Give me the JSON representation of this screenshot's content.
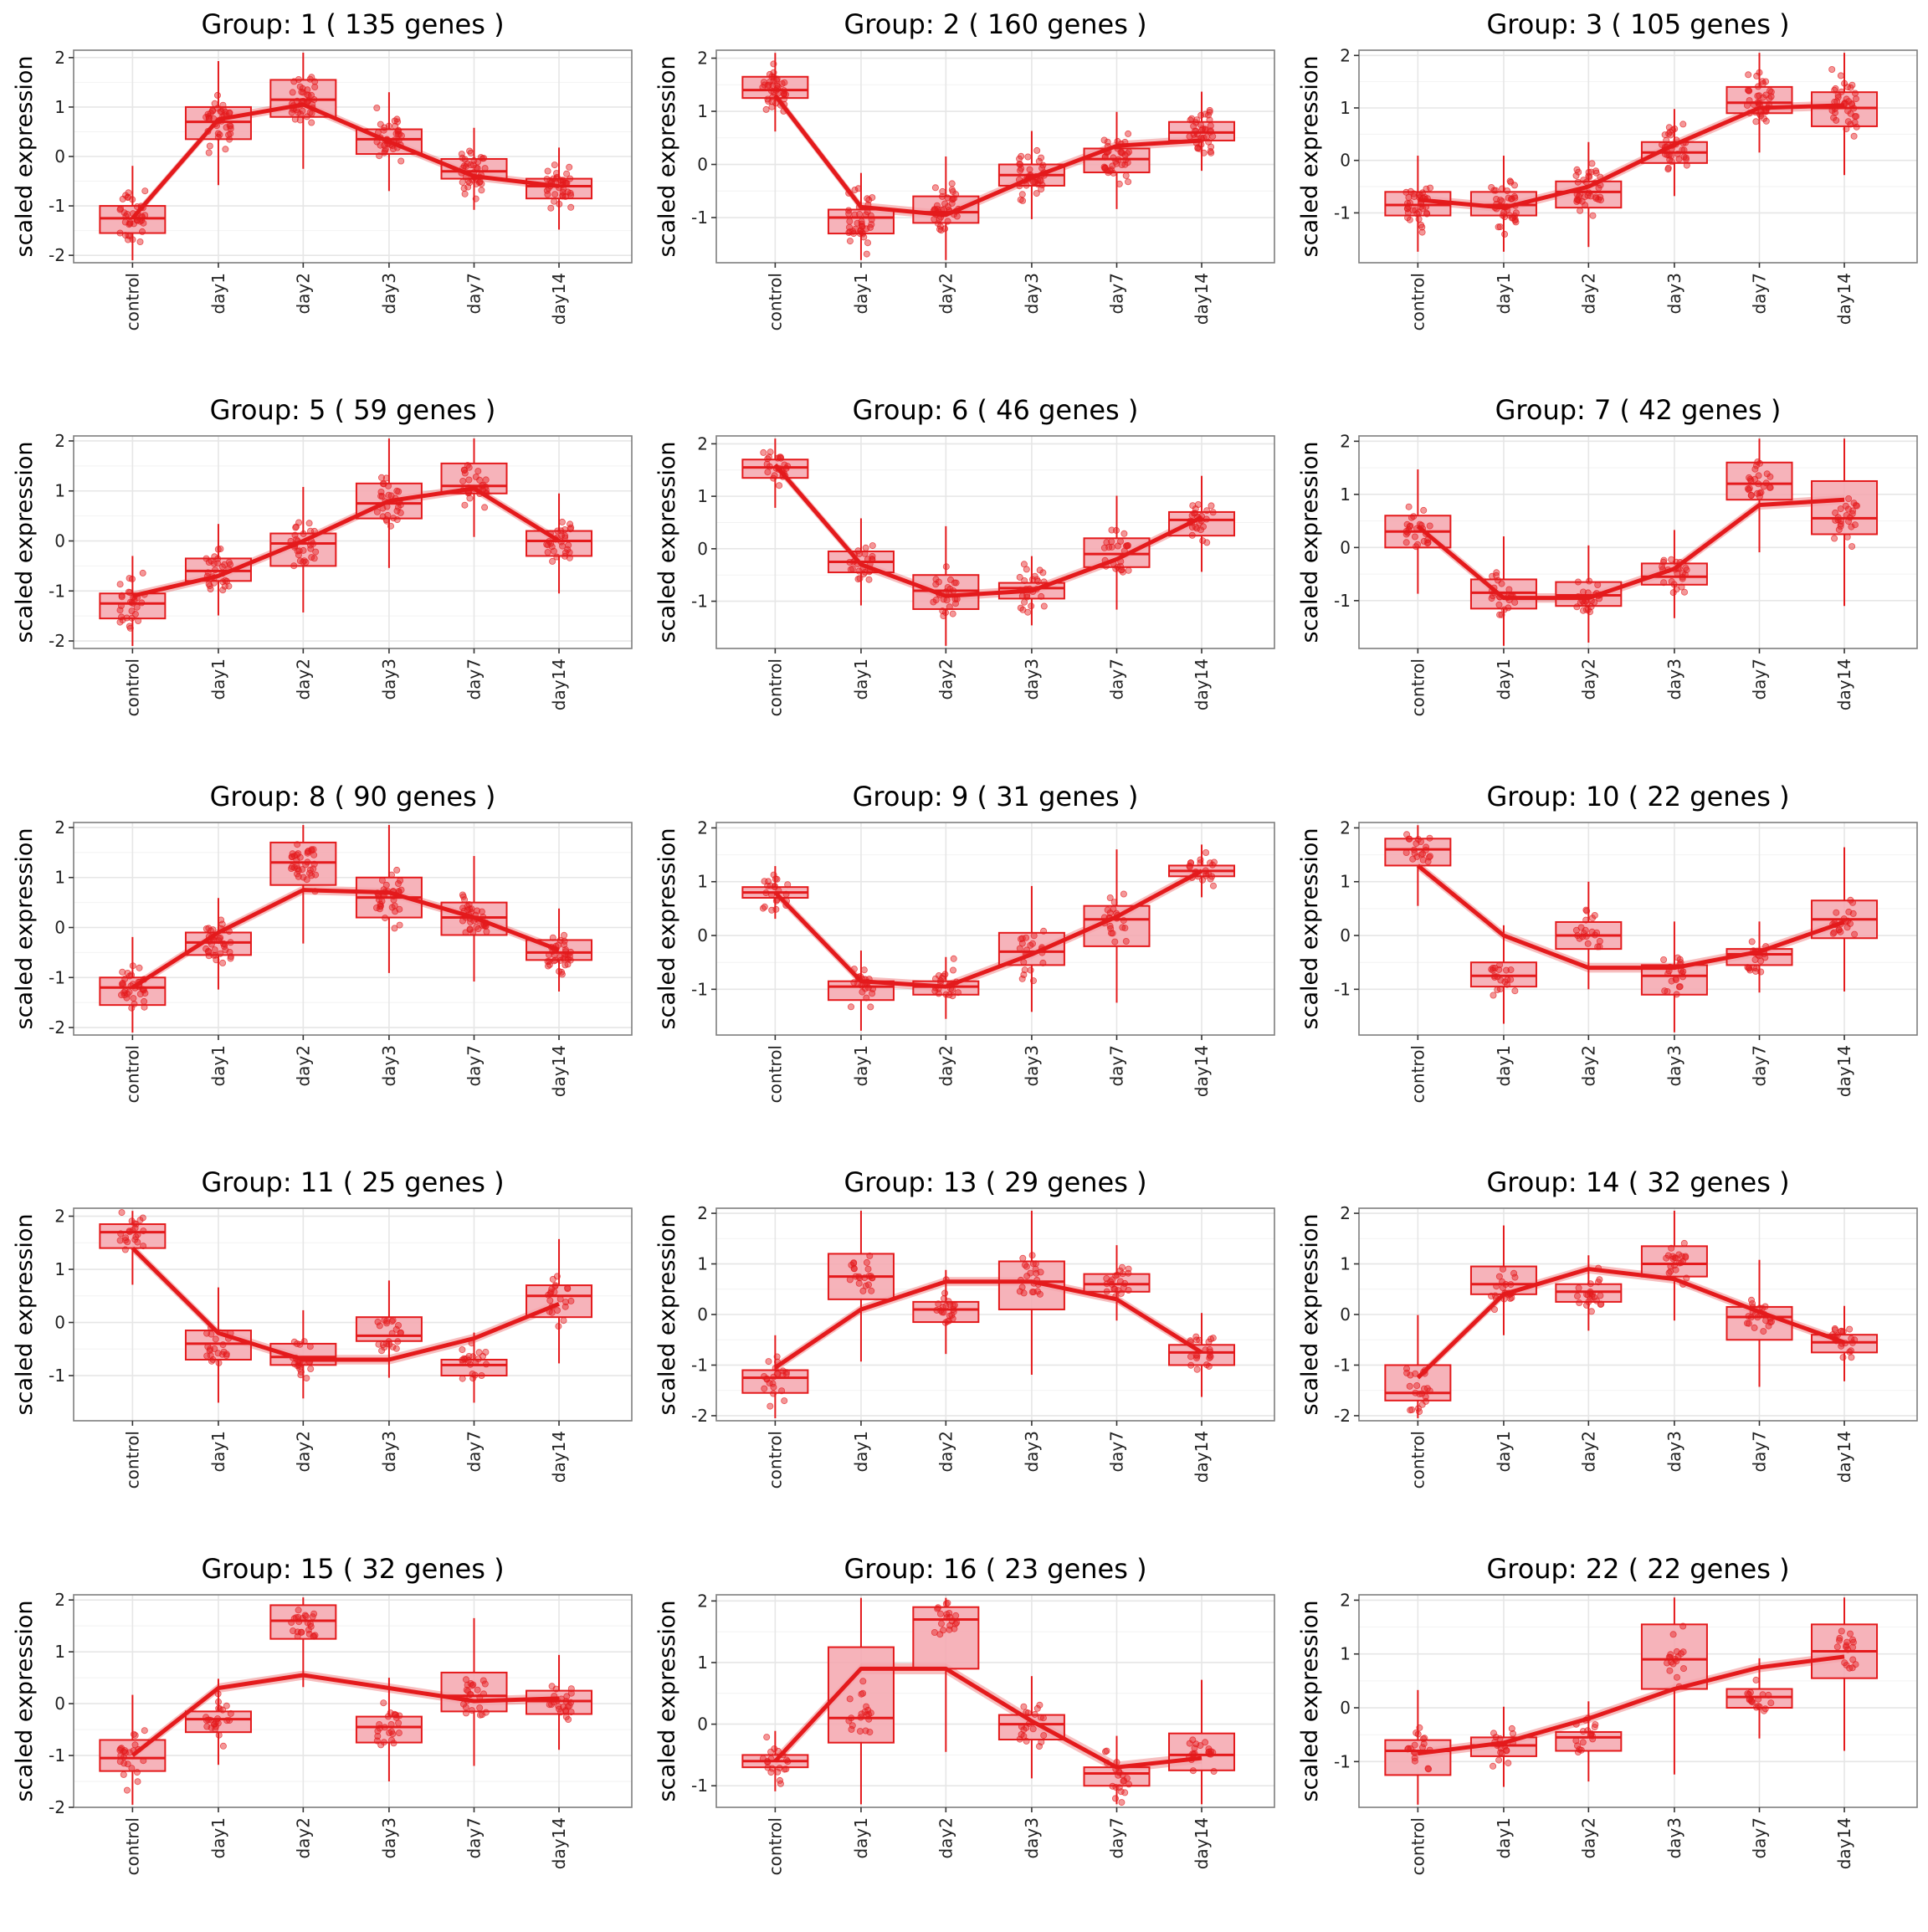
{
  "style": {
    "accent": "#E41A1C",
    "box_fill": "#F4A6AE",
    "panel_border": "#7F7F7F",
    "grid_color": "#E6E6E6"
  },
  "chart_data": [
    {
      "type": "box",
      "title": "Group: 1 ( 135  genes )",
      "xlabel": "",
      "ylabel": "scaled expression",
      "categories": [
        "control",
        "day1",
        "day2",
        "day3",
        "day7",
        "day14"
      ],
      "yticks": [
        2,
        1,
        0,
        -1,
        -2
      ],
      "ylim": [
        -2.15,
        2.15
      ],
      "grid": true,
      "boxes": [
        {
          "q1": -1.55,
          "median": -1.25,
          "q3": -1.0
        },
        {
          "q1": 0.35,
          "median": 0.7,
          "q3": 1.0
        },
        {
          "q1": 0.8,
          "median": 1.15,
          "q3": 1.55
        },
        {
          "q1": 0.05,
          "median": 0.35,
          "q3": 0.55
        },
        {
          "q1": -0.45,
          "median": -0.3,
          "q3": -0.05
        },
        {
          "q1": -0.85,
          "median": -0.6,
          "q3": -0.45
        }
      ],
      "trend": [
        -1.25,
        0.75,
        1.05,
        0.3,
        -0.4,
        -0.6
      ],
      "spread": [
        0.8,
        0.65,
        0.55,
        0.55,
        0.5,
        0.45
      ],
      "n": 40
    },
    {
      "type": "box",
      "title": "Group: 2 ( 160  genes )",
      "xlabel": "",
      "ylabel": "scaled expression",
      "categories": [
        "control",
        "day1",
        "day2",
        "day3",
        "day7",
        "day14"
      ],
      "yticks": [
        2,
        1,
        0,
        -1
      ],
      "ylim": [
        -1.85,
        2.15
      ],
      "grid": true,
      "boxes": [
        {
          "q1": 1.25,
          "median": 1.4,
          "q3": 1.65
        },
        {
          "q1": -1.3,
          "median": -1.0,
          "q3": -0.85
        },
        {
          "q1": -1.1,
          "median": -0.9,
          "q3": -0.6
        },
        {
          "q1": -0.4,
          "median": -0.2,
          "q3": 0.0
        },
        {
          "q1": -0.15,
          "median": 0.1,
          "q3": 0.3
        },
        {
          "q1": 0.45,
          "median": 0.6,
          "q3": 0.8
        }
      ],
      "trend": [
        1.3,
        -0.8,
        -0.95,
        -0.25,
        0.35,
        0.45
      ],
      "spread": [
        0.45,
        0.65,
        0.55,
        0.55,
        0.55,
        0.5
      ],
      "n": 40
    },
    {
      "type": "box",
      "title": "Group: 3 ( 105  genes )",
      "xlabel": "",
      "ylabel": "scaled expression",
      "categories": [
        "control",
        "day1",
        "day2",
        "day3",
        "day7",
        "day14"
      ],
      "yticks": [
        2,
        1,
        0,
        -1
      ],
      "ylim": [
        -1.95,
        2.1
      ],
      "grid": true,
      "boxes": [
        {
          "q1": -1.05,
          "median": -0.85,
          "q3": -0.6
        },
        {
          "q1": -1.05,
          "median": -0.85,
          "q3": -0.6
        },
        {
          "q1": -0.9,
          "median": -0.6,
          "q3": -0.4
        },
        {
          "q1": -0.05,
          "median": 0.15,
          "q3": 0.35
        },
        {
          "q1": 0.9,
          "median": 1.1,
          "q3": 1.4
        },
        {
          "q1": 0.65,
          "median": 1.0,
          "q3": 1.3
        }
      ],
      "trend": [
        -0.75,
        -0.9,
        -0.5,
        0.3,
        1.0,
        1.05
      ],
      "spread": [
        0.6,
        0.55,
        0.6,
        0.6,
        0.6,
        0.7
      ],
      "n": 38
    },
    {
      "type": "box",
      "title": "Group: 5 ( 59  genes )",
      "xlabel": "",
      "ylabel": "scaled expression",
      "categories": [
        "control",
        "day1",
        "day2",
        "day3",
        "day7",
        "day14"
      ],
      "yticks": [
        2,
        1,
        0,
        -1,
        -2
      ],
      "ylim": [
        -2.15,
        2.1
      ],
      "grid": true,
      "boxes": [
        {
          "q1": -1.55,
          "median": -1.25,
          "q3": -1.05
        },
        {
          "q1": -0.8,
          "median": -0.6,
          "q3": -0.35
        },
        {
          "q1": -0.5,
          "median": -0.05,
          "q3": 0.15
        },
        {
          "q1": 0.45,
          "median": 0.75,
          "q3": 1.15
        },
        {
          "q1": 0.95,
          "median": 1.1,
          "q3": 1.55
        },
        {
          "q1": -0.3,
          "median": 0.0,
          "q3": 0.2
        }
      ],
      "trend": [
        -1.1,
        -0.7,
        0.0,
        0.8,
        1.05,
        0.0
      ],
      "spread": [
        0.7,
        0.55,
        0.55,
        0.6,
        0.55,
        0.45
      ],
      "n": 30
    },
    {
      "type": "box",
      "title": "Group: 6 ( 46  genes )",
      "xlabel": "",
      "ylabel": "scaled expression",
      "categories": [
        "control",
        "day1",
        "day2",
        "day3",
        "day7",
        "day14"
      ],
      "yticks": [
        2,
        1,
        0,
        -1
      ],
      "ylim": [
        -1.9,
        2.15
      ],
      "grid": true,
      "boxes": [
        {
          "q1": 1.35,
          "median": 1.55,
          "q3": 1.7
        },
        {
          "q1": -0.45,
          "median": -0.25,
          "q3": -0.05
        },
        {
          "q1": -1.15,
          "median": -0.8,
          "q3": -0.5
        },
        {
          "q1": -0.95,
          "median": -0.75,
          "q3": -0.65
        },
        {
          "q1": -0.35,
          "median": -0.1,
          "q3": 0.2
        },
        {
          "q1": 0.25,
          "median": 0.55,
          "q3": 0.7
        }
      ],
      "trend": [
        1.6,
        -0.3,
        -0.9,
        -0.8,
        -0.2,
        0.6
      ],
      "spread": [
        0.45,
        0.45,
        0.55,
        0.45,
        0.55,
        0.5
      ],
      "n": 26
    },
    {
      "type": "box",
      "title": "Group: 7 ( 42  genes )",
      "xlabel": "",
      "ylabel": "scaled expression",
      "categories": [
        "control",
        "day1",
        "day2",
        "day3",
        "day7",
        "day14"
      ],
      "yticks": [
        2,
        1,
        0,
        -1
      ],
      "ylim": [
        -1.9,
        2.1
      ],
      "grid": true,
      "boxes": [
        {
          "q1": 0.0,
          "median": 0.3,
          "q3": 0.6
        },
        {
          "q1": -1.15,
          "median": -0.85,
          "q3": -0.6
        },
        {
          "q1": -1.1,
          "median": -0.9,
          "q3": -0.65
        },
        {
          "q1": -0.7,
          "median": -0.55,
          "q3": -0.3
        },
        {
          "q1": 0.9,
          "median": 1.2,
          "q3": 1.6
        },
        {
          "q1": 0.25,
          "median": 0.55,
          "q3": 1.25
        }
      ],
      "trend": [
        0.4,
        -0.95,
        -0.95,
        -0.4,
        0.8,
        0.9
      ],
      "spread": [
        0.45,
        0.5,
        0.5,
        0.5,
        0.55,
        0.6
      ],
      "n": 25
    },
    {
      "type": "box",
      "title": "Group: 8 ( 90  genes )",
      "xlabel": "",
      "ylabel": "scaled expression",
      "categories": [
        "control",
        "day1",
        "day2",
        "day3",
        "day7",
        "day14"
      ],
      "yticks": [
        2,
        1,
        0,
        -1,
        -2
      ],
      "ylim": [
        -2.15,
        2.1
      ],
      "grid": true,
      "boxes": [
        {
          "q1": -1.55,
          "median": -1.2,
          "q3": -1.0
        },
        {
          "q1": -0.55,
          "median": -0.3,
          "q3": -0.1
        },
        {
          "q1": 0.85,
          "median": 1.3,
          "q3": 1.7
        },
        {
          "q1": 0.2,
          "median": 0.6,
          "q3": 1.0
        },
        {
          "q1": -0.15,
          "median": 0.2,
          "q3": 0.5
        },
        {
          "q1": -0.65,
          "median": -0.5,
          "q3": -0.25
        }
      ],
      "trend": [
        -1.2,
        -0.1,
        0.75,
        0.7,
        0.2,
        -0.45
      ],
      "spread": [
        0.55,
        0.55,
        0.55,
        0.55,
        0.55,
        0.45
      ],
      "n": 36
    },
    {
      "type": "box",
      "title": "Group: 9 ( 31  genes )",
      "xlabel": "",
      "ylabel": "scaled expression",
      "categories": [
        "control",
        "day1",
        "day2",
        "day3",
        "day7",
        "day14"
      ],
      "yticks": [
        2,
        1,
        0,
        -1
      ],
      "ylim": [
        -1.85,
        2.1
      ],
      "grid": true,
      "boxes": [
        {
          "q1": 0.7,
          "median": 0.8,
          "q3": 0.9
        },
        {
          "q1": -1.2,
          "median": -0.95,
          "q3": -0.85
        },
        {
          "q1": -1.1,
          "median": -0.95,
          "q3": -0.85
        },
        {
          "q1": -0.55,
          "median": -0.3,
          "q3": 0.05
        },
        {
          "q1": -0.2,
          "median": 0.3,
          "q3": 0.55
        },
        {
          "q1": 1.1,
          "median": 1.2,
          "q3": 1.3
        }
      ],
      "trend": [
        0.8,
        -0.85,
        -0.95,
        -0.35,
        0.35,
        1.2
      ],
      "spread": [
        0.45,
        0.4,
        0.45,
        0.55,
        0.5,
        0.4
      ],
      "n": 22
    },
    {
      "type": "box",
      "title": "Group: 10 ( 22  genes )",
      "xlabel": "",
      "ylabel": "scaled expression",
      "categories": [
        "control",
        "day1",
        "day2",
        "day3",
        "day7",
        "day14"
      ],
      "yticks": [
        2,
        1,
        0,
        -1
      ],
      "ylim": [
        -1.85,
        2.1
      ],
      "grid": true,
      "boxes": [
        {
          "q1": 1.3,
          "median": 1.6,
          "q3": 1.8
        },
        {
          "q1": -0.95,
          "median": -0.75,
          "q3": -0.5
        },
        {
          "q1": -0.25,
          "median": 0.0,
          "q3": 0.25
        },
        {
          "q1": -1.1,
          "median": -0.75,
          "q3": -0.55
        },
        {
          "q1": -0.55,
          "median": -0.35,
          "q3": -0.25
        },
        {
          "q1": -0.05,
          "median": 0.3,
          "q3": 0.65
        }
      ],
      "trend": [
        1.3,
        0.0,
        -0.6,
        -0.6,
        -0.3,
        0.25
      ],
      "spread": [
        0.5,
        0.5,
        0.5,
        0.5,
        0.4,
        0.45
      ],
      "n": 20
    },
    {
      "type": "box",
      "title": "Group: 11 ( 25  genes )",
      "xlabel": "",
      "ylabel": "scaled expression",
      "categories": [
        "control",
        "day1",
        "day2",
        "day3",
        "day7",
        "day14"
      ],
      "yticks": [
        2,
        1,
        0,
        -1
      ],
      "ylim": [
        -1.85,
        2.15
      ],
      "grid": true,
      "boxes": [
        {
          "q1": 1.4,
          "median": 1.7,
          "q3": 1.85
        },
        {
          "q1": -0.7,
          "median": -0.4,
          "q3": -0.15
        },
        {
          "q1": -0.8,
          "median": -0.65,
          "q3": -0.4
        },
        {
          "q1": -0.35,
          "median": -0.25,
          "q3": 0.1
        },
        {
          "q1": -1.0,
          "median": -0.8,
          "q3": -0.7
        },
        {
          "q1": 0.1,
          "median": 0.5,
          "q3": 0.7
        }
      ],
      "trend": [
        1.4,
        -0.2,
        -0.7,
        -0.7,
        -0.3,
        0.35
      ],
      "spread": [
        0.4,
        0.5,
        0.45,
        0.5,
        0.45,
        0.5
      ],
      "n": 22
    },
    {
      "type": "box",
      "title": "Group: 13 ( 29  genes )",
      "xlabel": "",
      "ylabel": "scaled expression",
      "categories": [
        "control",
        "day1",
        "day2",
        "day3",
        "day7",
        "day14"
      ],
      "yticks": [
        2,
        1,
        0,
        -1,
        -2
      ],
      "ylim": [
        -2.1,
        2.1
      ],
      "grid": true,
      "boxes": [
        {
          "q1": -1.55,
          "median": -1.25,
          "q3": -1.1
        },
        {
          "q1": 0.3,
          "median": 0.75,
          "q3": 1.2
        },
        {
          "q1": -0.15,
          "median": 0.1,
          "q3": 0.25
        },
        {
          "q1": 0.1,
          "median": 0.65,
          "q3": 1.05
        },
        {
          "q1": 0.45,
          "median": 0.6,
          "q3": 0.8
        },
        {
          "q1": -1.0,
          "median": -0.75,
          "q3": -0.6
        }
      ],
      "trend": [
        -1.05,
        0.1,
        0.65,
        0.65,
        0.3,
        -0.75
      ],
      "spread": [
        0.55,
        0.6,
        0.5,
        0.6,
        0.55,
        0.5
      ],
      "n": 22
    },
    {
      "type": "box",
      "title": "Group: 14 ( 32  genes )",
      "xlabel": "",
      "ylabel": "scaled expression",
      "categories": [
        "control",
        "day1",
        "day2",
        "day3",
        "day7",
        "day14"
      ],
      "yticks": [
        2,
        1,
        0,
        -1,
        -2
      ],
      "ylim": [
        -2.1,
        2.1
      ],
      "grid": true,
      "boxes": [
        {
          "q1": -1.7,
          "median": -1.55,
          "q3": -1.0
        },
        {
          "q1": 0.4,
          "median": 0.6,
          "q3": 0.95
        },
        {
          "q1": 0.25,
          "median": 0.45,
          "q3": 0.6
        },
        {
          "q1": 0.75,
          "median": 1.0,
          "q3": 1.35
        },
        {
          "q1": -0.5,
          "median": -0.05,
          "q3": 0.15
        },
        {
          "q1": -0.75,
          "median": -0.55,
          "q3": -0.4
        }
      ],
      "trend": [
        -1.25,
        0.4,
        0.9,
        0.7,
        0.05,
        -0.55
      ],
      "spread": [
        0.55,
        0.55,
        0.45,
        0.55,
        0.5,
        0.45
      ],
      "n": 22
    },
    {
      "type": "box",
      "title": "Group: 15 ( 32  genes )",
      "xlabel": "",
      "ylabel": "scaled expression",
      "categories": [
        "control",
        "day1",
        "day2",
        "day3",
        "day7",
        "day14"
      ],
      "yticks": [
        2,
        1,
        0,
        -1,
        -2
      ],
      "ylim": [
        -2.0,
        2.1
      ],
      "grid": true,
      "boxes": [
        {
          "q1": -1.3,
          "median": -1.05,
          "q3": -0.7
        },
        {
          "q1": -0.55,
          "median": -0.3,
          "q3": -0.15
        },
        {
          "q1": 1.25,
          "median": 1.6,
          "q3": 1.9
        },
        {
          "q1": -0.75,
          "median": -0.45,
          "q3": -0.25
        },
        {
          "q1": -0.15,
          "median": 0.15,
          "q3": 0.6
        },
        {
          "q1": -0.2,
          "median": 0.05,
          "q3": 0.25
        }
      ],
      "trend": [
        -1.0,
        0.3,
        0.55,
        0.3,
        0.05,
        0.1
      ],
      "spread": [
        0.55,
        0.5,
        0.4,
        0.45,
        0.6,
        0.5
      ],
      "n": 24
    },
    {
      "type": "box",
      "title": "Group: 16 ( 23  genes )",
      "xlabel": "",
      "ylabel": "scaled expression",
      "categories": [
        "control",
        "day1",
        "day2",
        "day3",
        "day7",
        "day14"
      ],
      "yticks": [
        2,
        1,
        0,
        -1
      ],
      "ylim": [
        -1.35,
        2.1
      ],
      "grid": true,
      "boxes": [
        {
          "q1": -0.7,
          "median": -0.6,
          "q3": -0.5
        },
        {
          "q1": -0.3,
          "median": 0.1,
          "q3": 1.25
        },
        {
          "q1": 0.9,
          "median": 1.7,
          "q3": 1.9
        },
        {
          "q1": -0.25,
          "median": 0.0,
          "q3": 0.15
        },
        {
          "q1": -1.0,
          "median": -0.8,
          "q3": -0.7
        },
        {
          "q1": -0.75,
          "median": -0.5,
          "q3": -0.15
        }
      ],
      "trend": [
        -0.6,
        0.9,
        0.9,
        0.05,
        -0.7,
        -0.55
      ],
      "spread": [
        0.4,
        0.6,
        0.55,
        0.45,
        0.45,
        0.45
      ],
      "n": 20
    },
    {
      "type": "box",
      "title": "Group: 22 ( 22  genes )",
      "xlabel": "",
      "ylabel": "scaled expression",
      "categories": [
        "control",
        "day1",
        "day2",
        "day3",
        "day7",
        "day14"
      ],
      "yticks": [
        2,
        1,
        0,
        -1
      ],
      "ylim": [
        -1.85,
        2.1
      ],
      "grid": true,
      "boxes": [
        {
          "q1": -1.25,
          "median": -0.8,
          "q3": -0.6
        },
        {
          "q1": -0.9,
          "median": -0.7,
          "q3": -0.55
        },
        {
          "q1": -0.8,
          "median": -0.55,
          "q3": -0.45
        },
        {
          "q1": 0.35,
          "median": 0.9,
          "q3": 1.55
        },
        {
          "q1": 0.0,
          "median": 0.2,
          "q3": 0.35
        },
        {
          "q1": 0.55,
          "median": 1.05,
          "q3": 1.55
        }
      ],
      "trend": [
        -0.85,
        -0.65,
        -0.2,
        0.35,
        0.75,
        0.95
      ],
      "spread": [
        0.5,
        0.45,
        0.45,
        0.6,
        0.5,
        0.6
      ],
      "n": 18
    }
  ]
}
